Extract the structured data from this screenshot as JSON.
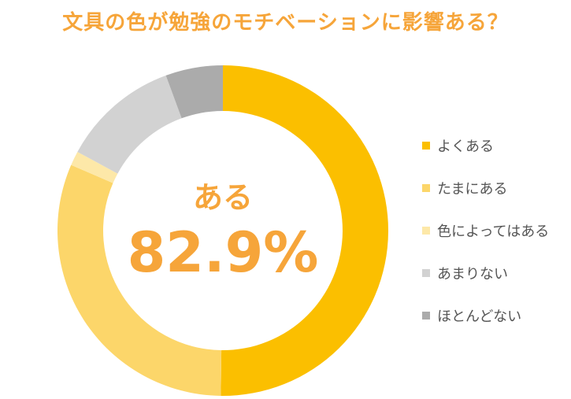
{
  "chart_data": {
    "type": "pie",
    "title": "文具の色が勉強のモチベーションに影響ある？",
    "center_label": "ある",
    "center_value": "82.9%",
    "categories": [
      "よくある",
      "たまにある",
      "色によってはある",
      "あまりない",
      "ほとんどない"
    ],
    "values": [
      50.2,
      31.3,
      1.4,
      11.5,
      5.6
    ],
    "colors": [
      "#fbbf00",
      "#fcd66a",
      "#fde8a8",
      "#d2d2d2",
      "#ababab"
    ],
    "legend_position": "right"
  }
}
